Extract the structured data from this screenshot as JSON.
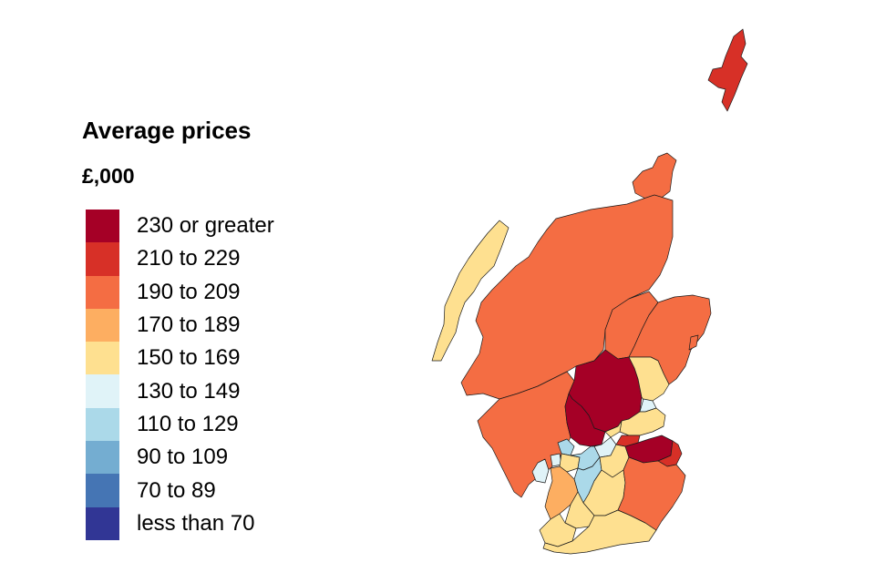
{
  "legend": {
    "title": "Average prices",
    "subtitle": "£,000",
    "bins": [
      {
        "label": "230 or greater",
        "color": "#a50026"
      },
      {
        "label": "210 to 229",
        "color": "#d73027"
      },
      {
        "label": "190 to 209",
        "color": "#f46d43"
      },
      {
        "label": "170 to 189",
        "color": "#fdae61"
      },
      {
        "label": "150 to 169",
        "color": "#fee090"
      },
      {
        "label": "130 to 149",
        "color": "#e0f3f8"
      },
      {
        "label": "110 to 129",
        "color": "#abd9e9"
      },
      {
        "label": "90 to 109",
        "color": "#74add1"
      },
      {
        "label": "70 to 89",
        "color": "#4575b4"
      },
      {
        "label": "less than 70",
        "color": "#313695"
      }
    ]
  },
  "map": {
    "region_colors": {
      "shetland": "#d73027",
      "orkney": "#f46d43",
      "western-isles": "#fee090",
      "highland": "#f46d43",
      "moray": "#f46d43",
      "aberdeenshire": "#f46d43",
      "aberdeen-city": "#f46d43",
      "argyll-and-bute": "#f46d43",
      "perth-and-kinross": "#a50026",
      "stirling": "#a50026",
      "angus": "#fee090",
      "dundee-city": "#e0f3f8",
      "fife": "#fee090",
      "clackmannanshire": "#fee090",
      "falkirk": "#e0f3f8",
      "west-dunbartonshire": "#abd9e9",
      "inverclyde": "#e0f3f8",
      "renfrewshire": "#fee090",
      "glasgow-city": "#abd9e9",
      "north-lanarkshire": "#abd9e9",
      "west-lothian": "#fee090",
      "city-of-edinburgh": "#a50026",
      "midlothian": "#d73027",
      "east-lothian": "#d73027",
      "south-lanarkshire": "#fee090",
      "north-ayrshire": "#fdae61",
      "east-ayrshire": "#fee090",
      "south-ayrshire": "#fee090",
      "dumfries-and-galloway": "#fee090",
      "scottish-borders": "#f46d43",
      "isle-of-arran": "#e0f3f8"
    }
  }
}
